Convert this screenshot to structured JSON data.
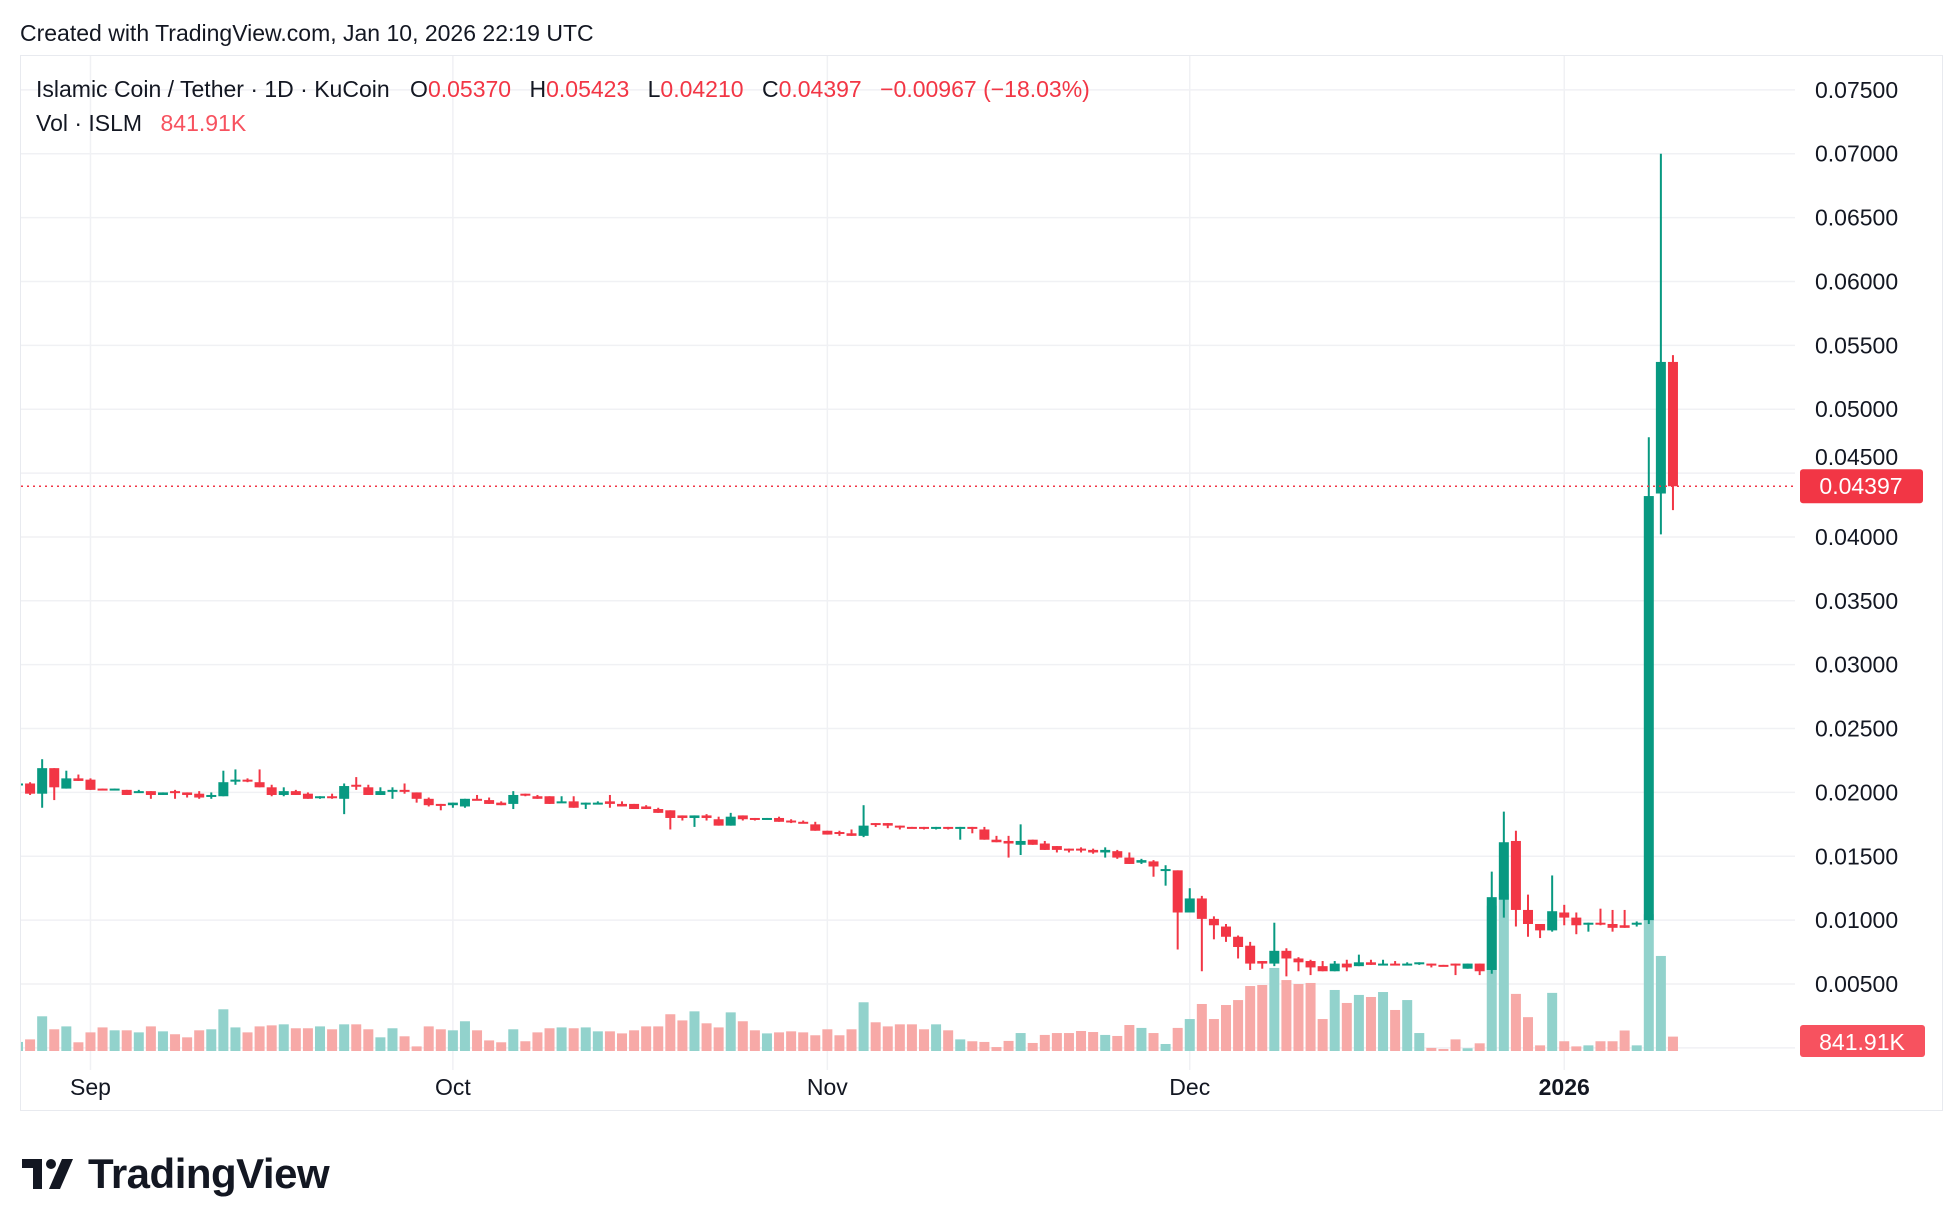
{
  "header": {
    "created_text": "Created with TradingView.com, Jan 10, 2026 22:19 UTC"
  },
  "legend": {
    "symbol": "Islamic Coin / Tether · 1D · KuCoin",
    "o_label": "O",
    "o_value": "0.05370",
    "h_label": "H",
    "h_value": "0.05423",
    "l_label": "L",
    "l_value": "0.04210",
    "c_label": "C",
    "c_value": "0.04397",
    "change": "−0.00967 (−18.03%)",
    "vol_label": "Vol · ISLM",
    "vol_value": "841.91K"
  },
  "logo": {
    "text": "TradingView"
  },
  "colors": {
    "up": "#089981",
    "down": "#F23645",
    "up_volume": "#92D2CC",
    "down_volume": "#F7A9A7",
    "last_price": "#F23645",
    "last_volume": "#F7525F",
    "grid": "#F0F1F4"
  },
  "chart_data": {
    "type": "candlestick",
    "title": "Islamic Coin / Tether · 1D · KuCoin",
    "y_axis": {
      "ticks": [
        "0.00500",
        "0.01000",
        "0.01500",
        "0.02000",
        "0.02500",
        "0.03000",
        "0.03500",
        "0.04000",
        "0.04500",
        "0.05000",
        "0.05500",
        "0.06000",
        "0.06500",
        "0.07000",
        "0.07500"
      ],
      "range": [
        0.0,
        0.077
      ],
      "position": "right"
    },
    "x_axis": {
      "ticks": [
        {
          "label": "Sep",
          "date": "Sep 1"
        },
        {
          "label": "Oct",
          "date": "Oct 1"
        },
        {
          "label": "Nov",
          "date": "Nov 1"
        },
        {
          "label": "Dec",
          "date": "Dec 1"
        },
        {
          "label": "2026",
          "date": "Jan 1",
          "bold": true
        }
      ]
    },
    "grid": true,
    "last_price_label": "0.04397",
    "last_volume_label": "841.91K",
    "columns": [
      "date",
      "open",
      "high",
      "low",
      "close",
      "volume_k"
    ],
    "candles": [
      [
        "Aug 26",
        0.0206,
        0.0208,
        0.0205,
        0.0207,
        530
      ],
      [
        "Aug 27",
        0.0207,
        0.0208,
        0.0198,
        0.0199,
        680
      ],
      [
        "Aug 28",
        0.0199,
        0.0226,
        0.0188,
        0.0219,
        2030
      ],
      [
        "Aug 29",
        0.0219,
        0.0219,
        0.0194,
        0.0204,
        1270
      ],
      [
        "Aug 30",
        0.0203,
        0.0217,
        0.0203,
        0.0211,
        1440
      ],
      [
        "Aug 31",
        0.0211,
        0.0214,
        0.0209,
        0.0209,
        510
      ],
      [
        "Sep 1",
        0.021,
        0.0211,
        0.0202,
        0.0202,
        1090
      ],
      [
        "Sep 2",
        0.0203,
        0.0203,
        0.0202,
        0.0202,
        1380
      ],
      [
        "Sep 3",
        0.0202,
        0.0203,
        0.0202,
        0.0203,
        1210
      ],
      [
        "Sep 4",
        0.0202,
        0.0202,
        0.0198,
        0.0198,
        1210
      ],
      [
        "Sep 5",
        0.02,
        0.0202,
        0.02,
        0.0201,
        1090
      ],
      [
        "Sep 6",
        0.0201,
        0.0201,
        0.0195,
        0.0198,
        1440
      ],
      [
        "Sep 7",
        0.0198,
        0.02,
        0.0198,
        0.02,
        1150
      ],
      [
        "Sep 8",
        0.0201,
        0.0202,
        0.0195,
        0.02,
        980
      ],
      [
        "Sep 9",
        0.02,
        0.02,
        0.0196,
        0.0198,
        800
      ],
      [
        "Sep 10",
        0.0199,
        0.0201,
        0.0195,
        0.0196,
        1210
      ],
      [
        "Sep 11",
        0.0197,
        0.02,
        0.0195,
        0.0198,
        1270
      ],
      [
        "Sep 12",
        0.0197,
        0.0217,
        0.0197,
        0.0208,
        2440
      ],
      [
        "Sep 13",
        0.0209,
        0.0218,
        0.0206,
        0.021,
        1380
      ],
      [
        "Sep 14",
        0.021,
        0.0211,
        0.0208,
        0.0209,
        1090
      ],
      [
        "Sep 15",
        0.0208,
        0.0218,
        0.0204,
        0.0204,
        1440
      ],
      [
        "Sep 16",
        0.0204,
        0.0206,
        0.0197,
        0.0198,
        1500
      ],
      [
        "Sep 17",
        0.0198,
        0.0204,
        0.0197,
        0.0201,
        1560
      ],
      [
        "Sep 18",
        0.0201,
        0.0202,
        0.0198,
        0.0198,
        1330
      ],
      [
        "Sep 19",
        0.0199,
        0.02,
        0.0195,
        0.0195,
        1330
      ],
      [
        "Sep 20",
        0.0196,
        0.0197,
        0.0195,
        0.0197,
        1440
      ],
      [
        "Sep 21",
        0.0197,
        0.0199,
        0.0195,
        0.0196,
        1270
      ],
      [
        "Sep 22",
        0.0195,
        0.0207,
        0.0183,
        0.0205,
        1560
      ],
      [
        "Sep 23",
        0.0206,
        0.0212,
        0.0202,
        0.0205,
        1560
      ],
      [
        "Sep 24",
        0.0204,
        0.0206,
        0.0198,
        0.0198,
        1270
      ],
      [
        "Sep 25",
        0.0198,
        0.0204,
        0.0198,
        0.0201,
        800
      ],
      [
        "Sep 26",
        0.0201,
        0.0204,
        0.0195,
        0.0202,
        1330
      ],
      [
        "Sep 27",
        0.0202,
        0.0207,
        0.0199,
        0.0201,
        860
      ],
      [
        "Sep 28",
        0.02,
        0.02,
        0.0192,
        0.0195,
        270
      ],
      [
        "Sep 29",
        0.0195,
        0.0196,
        0.0189,
        0.019,
        1440
      ],
      [
        "Sep 30",
        0.0191,
        0.0191,
        0.0186,
        0.019,
        1270
      ],
      [
        "Oct 1",
        0.019,
        0.0192,
        0.0188,
        0.0192,
        1210
      ],
      [
        "Oct 2",
        0.0189,
        0.0195,
        0.0188,
        0.0195,
        1740
      ],
      [
        "Oct 3",
        0.0195,
        0.0198,
        0.0194,
        0.0194,
        1210
      ],
      [
        "Oct 4",
        0.0194,
        0.0196,
        0.0191,
        0.0191,
        620
      ],
      [
        "Oct 5",
        0.0192,
        0.0193,
        0.019,
        0.019,
        510
      ],
      [
        "Oct 6",
        0.0191,
        0.0201,
        0.0187,
        0.0198,
        1270
      ],
      [
        "Oct 7",
        0.0199,
        0.0199,
        0.0197,
        0.0198,
        570
      ],
      [
        "Oct 8",
        0.0197,
        0.0198,
        0.0195,
        0.0195,
        1090
      ],
      [
        "Oct 9",
        0.0197,
        0.0197,
        0.0191,
        0.0191,
        1330
      ],
      [
        "Oct 10",
        0.0192,
        0.0197,
        0.0192,
        0.0193,
        1380
      ],
      [
        "Oct 11",
        0.0193,
        0.0197,
        0.0188,
        0.0188,
        1330
      ],
      [
        "Oct 12",
        0.0191,
        0.0192,
        0.0187,
        0.0192,
        1380
      ],
      [
        "Oct 13",
        0.0191,
        0.0193,
        0.0191,
        0.0192,
        1150
      ],
      [
        "Oct 14",
        0.0193,
        0.0198,
        0.0188,
        0.0191,
        1150
      ],
      [
        "Oct 15",
        0.0191,
        0.0193,
        0.0189,
        0.0189,
        1030
      ],
      [
        "Oct 16",
        0.0191,
        0.0191,
        0.0187,
        0.0187,
        1210
      ],
      [
        "Oct 17",
        0.0189,
        0.019,
        0.0187,
        0.0187,
        1440
      ],
      [
        "Oct 18",
        0.0187,
        0.0188,
        0.0184,
        0.0184,
        1440
      ],
      [
        "Oct 19",
        0.0186,
        0.0186,
        0.0171,
        0.018,
        2150
      ],
      [
        "Oct 20",
        0.0182,
        0.0182,
        0.0178,
        0.018,
        1790
      ],
      [
        "Oct 21",
        0.018,
        0.0182,
        0.0173,
        0.0182,
        2320
      ],
      [
        "Oct 22",
        0.0182,
        0.0183,
        0.0178,
        0.018,
        1620
      ],
      [
        "Oct 23",
        0.0179,
        0.0181,
        0.0174,
        0.0174,
        1380
      ],
      [
        "Oct 24",
        0.0174,
        0.0184,
        0.0174,
        0.0181,
        2260
      ],
      [
        "Oct 25",
        0.0182,
        0.0182,
        0.0178,
        0.0179,
        1740
      ],
      [
        "Oct 26",
        0.018,
        0.018,
        0.0178,
        0.0179,
        1210
      ],
      [
        "Oct 27",
        0.0179,
        0.018,
        0.0179,
        0.018,
        1030
      ],
      [
        "Oct 28",
        0.018,
        0.0181,
        0.0177,
        0.0177,
        1090
      ],
      [
        "Oct 29",
        0.0178,
        0.0179,
        0.0176,
        0.0177,
        1150
      ],
      [
        "Oct 30",
        0.0177,
        0.0178,
        0.0176,
        0.0176,
        1090
      ],
      [
        "Oct 31",
        0.0175,
        0.0177,
        0.017,
        0.017,
        920
      ],
      [
        "Nov 1",
        0.017,
        0.017,
        0.0167,
        0.0167,
        1270
      ],
      [
        "Nov 2",
        0.0169,
        0.017,
        0.0166,
        0.0168,
        920
      ],
      [
        "Nov 3",
        0.0168,
        0.0171,
        0.0166,
        0.0166,
        1270
      ],
      [
        "Nov 4",
        0.0166,
        0.019,
        0.0165,
        0.0174,
        2850
      ],
      [
        "Nov 5",
        0.0176,
        0.0176,
        0.0173,
        0.0175,
        1680
      ],
      [
        "Nov 6",
        0.0176,
        0.0176,
        0.0172,
        0.0174,
        1440
      ],
      [
        "Nov 7",
        0.0174,
        0.0174,
        0.0171,
        0.0173,
        1560
      ],
      [
        "Nov 8",
        0.0173,
        0.0173,
        0.0172,
        0.0172,
        1560
      ],
      [
        "Nov 9",
        0.0173,
        0.0173,
        0.0171,
        0.0172,
        1270
      ],
      [
        "Nov 10",
        0.0172,
        0.0173,
        0.0171,
        0.0173,
        1560
      ],
      [
        "Nov 11",
        0.0173,
        0.0173,
        0.0171,
        0.0172,
        1210
      ],
      [
        "Nov 12",
        0.0172,
        0.0173,
        0.0163,
        0.0173,
        680
      ],
      [
        "Nov 13",
        0.0173,
        0.0173,
        0.0168,
        0.0172,
        570
      ],
      [
        "Nov 14",
        0.0171,
        0.0173,
        0.0163,
        0.0163,
        530
      ],
      [
        "Nov 15",
        0.0163,
        0.0166,
        0.0161,
        0.0161,
        230
      ],
      [
        "Nov 16",
        0.0162,
        0.0166,
        0.0149,
        0.016,
        590
      ],
      [
        "Nov 17",
        0.0159,
        0.0175,
        0.0151,
        0.0162,
        1050
      ],
      [
        "Nov 18",
        0.0163,
        0.0163,
        0.0159,
        0.0159,
        470
      ],
      [
        "Nov 19",
        0.016,
        0.0162,
        0.0155,
        0.0155,
        940
      ],
      [
        "Nov 20",
        0.0158,
        0.0158,
        0.0153,
        0.0155,
        1050
      ],
      [
        "Nov 21",
        0.0156,
        0.0156,
        0.0153,
        0.0155,
        1050
      ],
      [
        "Nov 22",
        0.0156,
        0.0157,
        0.0153,
        0.0155,
        1170
      ],
      [
        "Nov 23",
        0.0155,
        0.0156,
        0.0152,
        0.0153,
        1110
      ],
      [
        "Nov 24",
        0.0153,
        0.0157,
        0.0149,
        0.0155,
        940
      ],
      [
        "Nov 25",
        0.0154,
        0.0155,
        0.0148,
        0.0149,
        880
      ],
      [
        "Nov 26",
        0.0149,
        0.0153,
        0.0144,
        0.0144,
        1520
      ],
      [
        "Nov 27",
        0.0145,
        0.0148,
        0.0144,
        0.0147,
        1350
      ],
      [
        "Nov 28",
        0.0146,
        0.0147,
        0.0134,
        0.0142,
        1050
      ],
      [
        "Nov 29",
        0.0139,
        0.0143,
        0.0127,
        0.014,
        410
      ],
      [
        "Nov 30",
        0.0139,
        0.0139,
        0.0077,
        0.0106,
        1350
      ],
      [
        "Dec 1",
        0.0106,
        0.0125,
        0.0106,
        0.0117,
        1870
      ],
      [
        "Dec 2",
        0.0117,
        0.0119,
        0.006,
        0.0101,
        2750
      ],
      [
        "Dec 3",
        0.0101,
        0.0103,
        0.0085,
        0.0096,
        1870
      ],
      [
        "Dec 4",
        0.0095,
        0.0097,
        0.0083,
        0.0087,
        2690
      ],
      [
        "Dec 5",
        0.0087,
        0.0088,
        0.007,
        0.0079,
        2980
      ],
      [
        "Dec 6",
        0.008,
        0.0083,
        0.0061,
        0.0066,
        3800
      ],
      [
        "Dec 7",
        0.0068,
        0.0068,
        0.0062,
        0.0066,
        3860
      ],
      [
        "Dec 8",
        0.0066,
        0.0098,
        0.0064,
        0.0076,
        4860
      ],
      [
        "Dec 9",
        0.0076,
        0.0078,
        0.0056,
        0.007,
        4150
      ],
      [
        "Dec 10",
        0.007,
        0.0071,
        0.006,
        0.0067,
        3920
      ],
      [
        "Dec 11",
        0.0068,
        0.0069,
        0.0057,
        0.0063,
        3980
      ],
      [
        "Dec 12",
        0.0064,
        0.0068,
        0.006,
        0.006,
        1870
      ],
      [
        "Dec 13",
        0.006,
        0.0068,
        0.006,
        0.0066,
        3570
      ],
      [
        "Dec 14",
        0.0066,
        0.0069,
        0.006,
        0.0063,
        2810
      ],
      [
        "Dec 15",
        0.0064,
        0.0073,
        0.0064,
        0.0067,
        3280
      ],
      [
        "Dec 16",
        0.0067,
        0.0069,
        0.0065,
        0.0065,
        3160
      ],
      [
        "Dec 17",
        0.0065,
        0.0069,
        0.0065,
        0.0066,
        3450
      ],
      [
        "Dec 18",
        0.0066,
        0.0068,
        0.0065,
        0.0065,
        2400
      ],
      [
        "Dec 19",
        0.0065,
        0.0067,
        0.0065,
        0.0066,
        2980
      ],
      [
        "Dec 20",
        0.0066,
        0.0067,
        0.0065,
        0.0067,
        1050
      ],
      [
        "Dec 21",
        0.0066,
        0.0066,
        0.0063,
        0.0065,
        180
      ],
      [
        "Dec 22",
        0.0065,
        0.0065,
        0.0064,
        0.0064,
        120
      ],
      [
        "Dec 23",
        0.0066,
        0.0066,
        0.0057,
        0.0065,
        680
      ],
      [
        "Dec 24",
        0.0062,
        0.0066,
        0.0062,
        0.0066,
        160
      ],
      [
        "Dec 25",
        0.0066,
        0.0066,
        0.0057,
        0.006,
        450
      ],
      [
        "Dec 26",
        0.0061,
        0.0138,
        0.0058,
        0.0118,
        8500
      ],
      [
        "Dec 27",
        0.0116,
        0.0185,
        0.0102,
        0.0161,
        9200
      ],
      [
        "Dec 28",
        0.0162,
        0.017,
        0.0095,
        0.0108,
        3340
      ],
      [
        "Dec 29",
        0.0108,
        0.012,
        0.0087,
        0.0097,
        1980
      ],
      [
        "Dec 30",
        0.0097,
        0.0097,
        0.0086,
        0.0092,
        330
      ],
      [
        "Dec 31",
        0.0092,
        0.0135,
        0.0091,
        0.0107,
        3400
      ],
      [
        "Jan 1",
        0.0106,
        0.0112,
        0.0096,
        0.0102,
        570
      ],
      [
        "Jan 2",
        0.0102,
        0.0106,
        0.0089,
        0.0096,
        270
      ],
      [
        "Jan 3",
        0.0097,
        0.0098,
        0.0091,
        0.0098,
        330
      ],
      [
        "Jan 4",
        0.0098,
        0.0109,
        0.0096,
        0.0097,
        570
      ],
      [
        "Jan 5",
        0.0097,
        0.0108,
        0.0091,
        0.0094,
        570
      ],
      [
        "Jan 6",
        0.0096,
        0.0108,
        0.0094,
        0.0094,
        1200
      ],
      [
        "Jan 7",
        0.0097,
        0.0099,
        0.0095,
        0.0098,
        330
      ],
      [
        "Jan 8",
        0.01,
        0.0478,
        0.0097,
        0.0432,
        8000
      ],
      [
        "Jan 9",
        0.0434,
        0.07,
        0.0402,
        0.0537,
        5560
      ],
      [
        "Jan 10",
        0.0537,
        0.05423,
        0.0421,
        0.04397,
        841.91
      ]
    ]
  }
}
